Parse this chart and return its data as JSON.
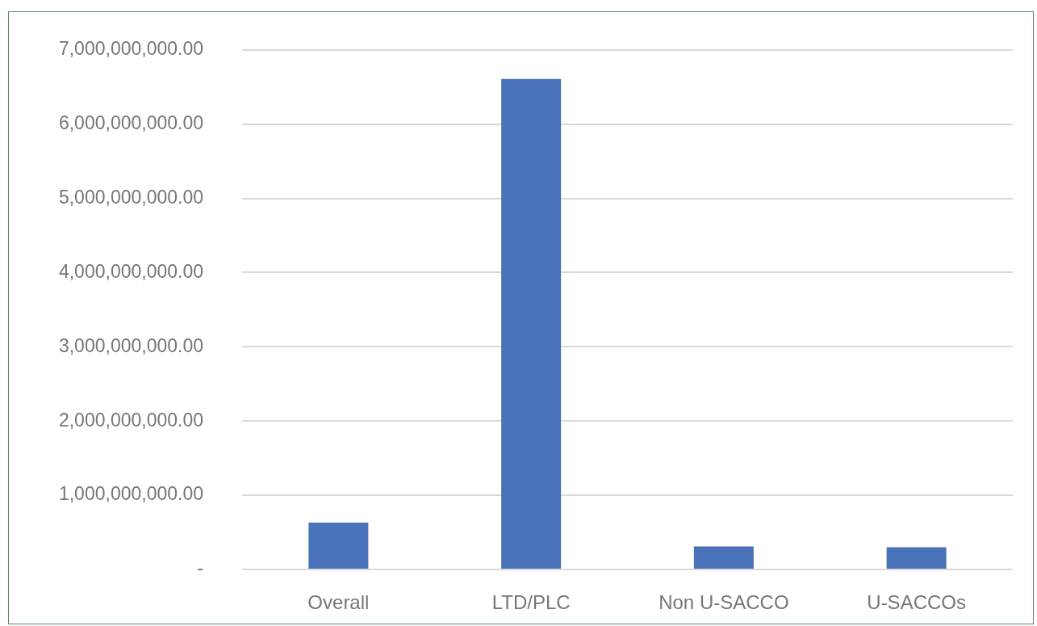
{
  "chart_data": {
    "type": "bar",
    "categories": [
      "Overall",
      "LTD/PLC",
      "Non U-SACCO",
      "U-SACCOs"
    ],
    "values": [
      630000000,
      6610000000,
      310000000,
      300000000
    ],
    "color": "#4a72b8",
    "ylim": [
      0,
      7000000000
    ],
    "yticks": [
      {
        "value": 0,
        "label": "-"
      },
      {
        "value": 1000000000,
        "label": "1,000,000,000.00"
      },
      {
        "value": 2000000000,
        "label": "2,000,000,000.00"
      },
      {
        "value": 3000000000,
        "label": "3,000,000,000.00"
      },
      {
        "value": 4000000000,
        "label": "4,000,000,000.00"
      },
      {
        "value": 5000000000,
        "label": "5,000,000,000.00"
      },
      {
        "value": 6000000000,
        "label": "6,000,000,000.00"
      },
      {
        "value": 7000000000,
        "label": "7,000,000,000.00"
      }
    ],
    "grid": "y",
    "legend": false
  }
}
